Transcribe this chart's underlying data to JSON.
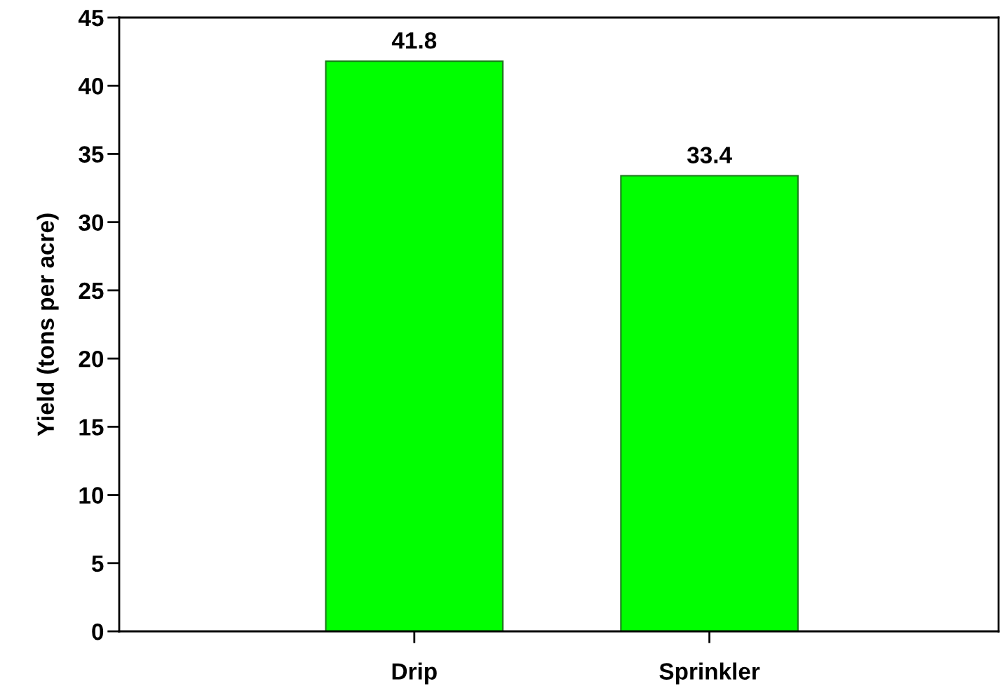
{
  "chart_data": {
    "type": "bar",
    "ylabel": "Yield (tons per acre)",
    "categories": [
      "Drip",
      "Sprinkler"
    ],
    "values": [
      41.8,
      33.4
    ],
    "color": "#00ff00",
    "ylim": [
      0,
      45
    ],
    "yticks": [
      0,
      5,
      10,
      15,
      20,
      25,
      30,
      35,
      40,
      45
    ],
    "data_labels": true,
    "grid": false
  }
}
